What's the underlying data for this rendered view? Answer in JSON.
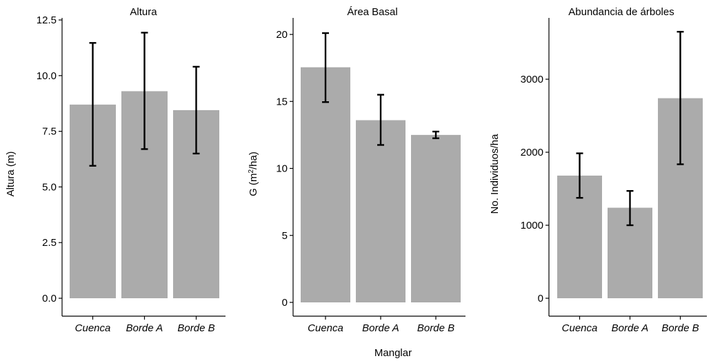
{
  "figure": {
    "xlabel": "Manglar"
  },
  "chart_data": [
    {
      "type": "bar",
      "title": "Altura",
      "ylabel": "Altura (m)",
      "ylabel_unit_sup": "",
      "ylabel_tail": "",
      "categories": [
        "Cuenca",
        "Borde A",
        "Borde B"
      ],
      "values": [
        8.7,
        9.3,
        8.45
      ],
      "error_low": [
        5.95,
        6.7,
        6.5
      ],
      "error_high": [
        11.47,
        11.93,
        10.4
      ],
      "yticks": [
        0,
        2.5,
        5,
        7.5,
        10,
        12.5
      ],
      "ytick_labels": [
        "0.0",
        "2.5",
        "5.0",
        "7.5",
        "10.0",
        "12.5"
      ],
      "ylim": [
        0,
        12.5
      ],
      "bar_color": "#ababab"
    },
    {
      "type": "bar",
      "title": "Área Basal",
      "ylabel": "G (m",
      "ylabel_unit_sup": "2",
      "ylabel_tail": "/ha)",
      "categories": [
        "Cuenca",
        "Borde A",
        "Borde B"
      ],
      "values": [
        17.55,
        13.6,
        12.5
      ],
      "error_low": [
        14.95,
        11.75,
        12.25
      ],
      "error_high": [
        20.1,
        15.5,
        12.75
      ],
      "yticks": [
        0,
        5,
        10,
        15,
        20
      ],
      "ytick_labels": [
        "0",
        "5",
        "10",
        "15",
        "20"
      ],
      "ylim": [
        0,
        20
      ],
      "bar_color": "#ababab"
    },
    {
      "type": "bar",
      "title": "Abundancia de árboles",
      "ylabel": "No. Individuos/ha",
      "ylabel_unit_sup": "",
      "ylabel_tail": "",
      "categories": [
        "Cuenca",
        "Borde A",
        "Borde B"
      ],
      "values": [
        1680,
        1240,
        2740
      ],
      "error_low": [
        1375,
        1000,
        1835
      ],
      "error_high": [
        1985,
        1470,
        3650
      ],
      "yticks": [
        0,
        1000,
        2000,
        3000
      ],
      "ytick_labels": [
        "0",
        "1000",
        "2000",
        "3000"
      ],
      "ylim": [
        0,
        3000
      ],
      "bar_color": "#ababab"
    }
  ]
}
